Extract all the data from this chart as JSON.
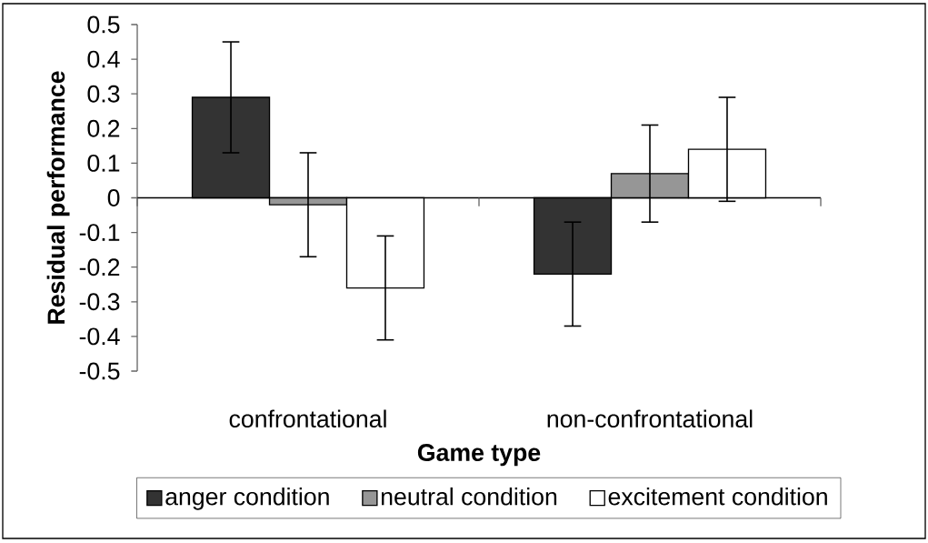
{
  "chart_data": {
    "type": "bar",
    "xlabel": "Game type",
    "ylabel": "Residual performance",
    "categories": [
      "confrontational",
      "non-confrontational"
    ],
    "series": [
      {
        "name": "anger condition",
        "color": "#333333",
        "values": [
          0.29,
          -0.22
        ],
        "errors": [
          0.16,
          0.15
        ]
      },
      {
        "name": "neutral condition",
        "color": "#969696",
        "values": [
          -0.02,
          0.07
        ],
        "errors": [
          0.15,
          0.14
        ]
      },
      {
        "name": "excitement condition",
        "color": "#ffffff",
        "values": [
          -0.26,
          0.14
        ],
        "errors": [
          0.15,
          0.15
        ]
      }
    ],
    "ylim": [
      -0.5,
      0.5
    ],
    "yticks": [
      -0.5,
      -0.4,
      -0.3,
      -0.2,
      -0.1,
      0,
      0.1,
      0.2,
      0.3,
      0.4,
      0.5
    ],
    "legend": "bottom"
  }
}
